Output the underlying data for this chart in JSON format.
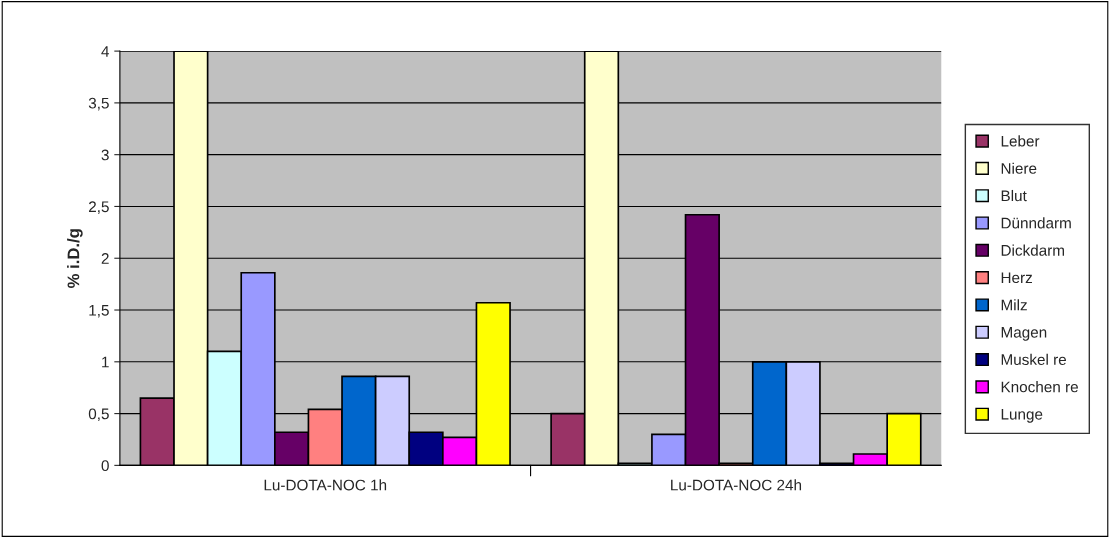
{
  "chart_data": {
    "type": "bar",
    "ylabel": "% i.D./g",
    "categories": [
      "Lu-DOTA-NOC 1h",
      "Lu-DOTA-NOC 24h"
    ],
    "series": [
      {
        "name": "Leber",
        "color": "#993366",
        "values": [
          0.65,
          0.5
        ]
      },
      {
        "name": "Niere",
        "color": "#ffffcc",
        "values": [
          4,
          4
        ]
      },
      {
        "name": "Blut",
        "color": "#ccffff",
        "values": [
          1.1,
          0.02
        ]
      },
      {
        "name": "Dünndarm",
        "color": "#9999ff",
        "values": [
          1.86,
          0.3
        ]
      },
      {
        "name": "Dickdarm",
        "color": "#660066",
        "values": [
          0.32,
          2.42
        ]
      },
      {
        "name": "Herz",
        "color": "#ff8080",
        "values": [
          0.54,
          0.02
        ]
      },
      {
        "name": "Milz",
        "color": "#0066cc",
        "values": [
          0.86,
          1.0
        ]
      },
      {
        "name": "Magen",
        "color": "#ccccff",
        "values": [
          0.86,
          1.0
        ]
      },
      {
        "name": "Muskel re",
        "color": "#000080",
        "values": [
          0.32,
          0.02
        ]
      },
      {
        "name": "Knochen re",
        "color": "#ff00ff",
        "values": [
          0.27,
          0.11
        ]
      },
      {
        "name": "Lunge",
        "color": "#ffff00",
        "values": [
          1.57,
          0.5
        ]
      }
    ],
    "ylim": [
      0,
      4
    ],
    "yticks": [
      0,
      {
        "value": 0.5,
        "label": "0,5"
      },
      1,
      {
        "value": 1.5,
        "label": "1,5"
      },
      2,
      {
        "value": 2.5,
        "label": "2,5"
      },
      3,
      {
        "value": 3.5,
        "label": "3,5"
      },
      4
    ],
    "grid": "y",
    "legend": "right"
  }
}
